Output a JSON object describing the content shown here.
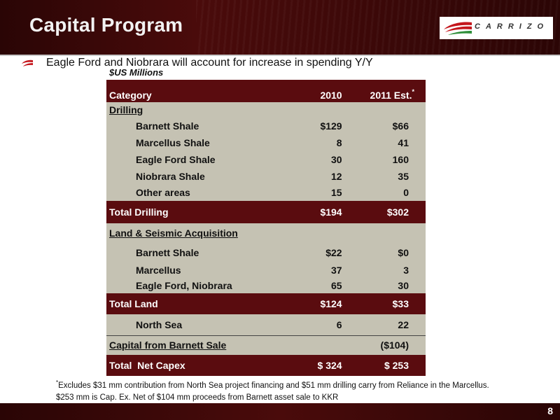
{
  "header": {
    "title": "Capital Program",
    "logo_text": "CARRIZO",
    "brand_colors": {
      "maroon": "#5a0c0f",
      "red": "#c4161c",
      "green": "#2f8f3a"
    }
  },
  "bullet": {
    "icon": "carrizo-swoosh-icon",
    "text": "Eagle Ford and Niobrara will account for increase in spending Y/Y"
  },
  "table": {
    "units": "$US Millions",
    "headers": {
      "category": "Category",
      "y2010": "2010",
      "y2011": "2011 Est.",
      "y2011_mark": "*"
    },
    "drilling_label": "Drilling",
    "drilling_rows": [
      {
        "name": "Barnett Shale",
        "y2010": "$129",
        "y2011": "$66"
      },
      {
        "name": "Marcellus Shale",
        "y2010": "8",
        "y2011": "41"
      },
      {
        "name": "Eagle Ford Shale",
        "y2010": "30",
        "y2011": "160"
      },
      {
        "name": "Niobrara Shale",
        "y2010": "12",
        "y2011": "35"
      },
      {
        "name": "Other areas",
        "y2010": "15",
        "y2011": "0"
      }
    ],
    "total_drilling": {
      "name": "Total Drilling",
      "y2010": "$194",
      "y2011": "$302"
    },
    "land_label": "Land & Seismic Acquisition",
    "land_rows": [
      {
        "name": "Barnett Shale",
        "y2010": "$22",
        "y2011": "$0"
      },
      {
        "name": "Marcellus",
        "y2010": "37",
        "y2011": "3"
      },
      {
        "name": "Eagle Ford, Niobrara",
        "y2010": "65",
        "y2011": "30"
      }
    ],
    "total_land": {
      "name": "Total Land",
      "y2010": "$124",
      "y2011": "$33"
    },
    "north_sea": {
      "name": "North Sea",
      "y2010": "6",
      "y2011": "22"
    },
    "barnett_sale": {
      "name": "Capital from Barnett Sale",
      "y2010": "",
      "y2011": "($104)"
    },
    "total_net": {
      "name": "Total  Net Capex",
      "y2010": "$ 324",
      "y2011": "$ 253"
    }
  },
  "footnotes": {
    "mark": "*",
    "line1": "Excludes $31 mm contribution from North Sea project financing and $51 mm drilling carry from Reliance in the Marcellus.",
    "line2": "$253 mm is Cap. Ex. Net of $104 mm proceeds from Barnett asset sale to KKR"
  },
  "page_number": "8"
}
